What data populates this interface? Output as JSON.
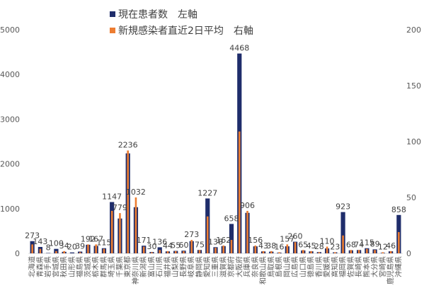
{
  "chart_data": {
    "type": "bar",
    "legend": {
      "left_series": "現在患者数　左軸",
      "right_series": "新規感染者直近2日平均　右軸"
    },
    "left_axis": {
      "ylim": [
        0,
        5000
      ],
      "ticks": [
        "0",
        "1000",
        "2000",
        "3000",
        "4000",
        "5000"
      ]
    },
    "right_axis": {
      "ylim": [
        0,
        200
      ],
      "ticks": [
        "0",
        "50",
        "100",
        "150",
        "200"
      ]
    },
    "colors": {
      "left": "#1f2d6b",
      "right": "#ed7d31"
    },
    "categories": [
      "北海道",
      "青森県",
      "岩手県",
      "宮城県",
      "秋田県",
      "山形県",
      "福島県",
      "茨城県",
      "栃木県",
      "群馬県",
      "埼玉県",
      "千葉県",
      "東京都",
      "神奈川県",
      "新潟県",
      "富山県",
      "石川県",
      "福井県",
      "山梨県",
      "長野県",
      "岐阜県",
      "静岡県",
      "愛知県",
      "三重県",
      "滋賀県",
      "京都府",
      "大阪府",
      "兵庫県",
      "奈良県",
      "和歌山県",
      "鳥取県",
      "島根県",
      "岡山県",
      "広島県",
      "山口県",
      "徳島県",
      "香川県",
      "愛媛県",
      "高知県",
      "福岡県",
      "佐賀県",
      "長崎県",
      "熊本県",
      "大分県",
      "宮崎県",
      "鹿児島県",
      "沖縄県"
    ],
    "series": [
      {
        "name": "現在患者数　左軸",
        "axis": "left",
        "values": [
          273,
          143,
          8,
          100,
          34,
          20,
          39,
          192,
          167,
          115,
          1147,
          779,
          2236,
          1032,
          171,
          30,
          136,
          44,
          55,
          60,
          273,
          75,
          1227,
          138,
          162,
          658,
          4468,
          906,
          156,
          43,
          38,
          16,
          157,
          260,
          65,
          45,
          28,
          110,
          23,
          923,
          68,
          74,
          115,
          89,
          12,
          46,
          858
        ],
        "labels": [
          "273",
          "143",
          "8",
          "100",
          "34",
          "20",
          "39",
          "192",
          "167",
          "115",
          "1147",
          "779",
          "2236",
          "1032",
          "171",
          "30",
          "136",
          "44",
          "55",
          "60",
          "273",
          "75",
          "1227",
          "138",
          "162",
          "658",
          "4468",
          "906",
          "156",
          "43",
          "38",
          "16",
          "157",
          "260",
          "65",
          "45",
          "28",
          "110",
          "23",
          "923",
          "68",
          "74",
          "115",
          "89",
          "12",
          "46",
          "858"
        ]
      },
      {
        "name": "新規感染者直近2日平均　右軸",
        "axis": "right",
        "values": [
          8,
          4,
          0,
          2,
          2,
          0,
          1,
          8,
          8,
          4,
          38,
          36,
          92,
          50,
          6,
          1,
          3,
          2,
          2,
          2,
          12,
          3,
          33,
          5,
          7,
          12,
          109,
          38,
          7,
          2,
          2,
          1,
          8,
          10,
          3,
          2,
          1,
          6,
          1,
          16,
          3,
          3,
          4,
          3,
          1,
          2,
          19
        ]
      }
    ]
  }
}
